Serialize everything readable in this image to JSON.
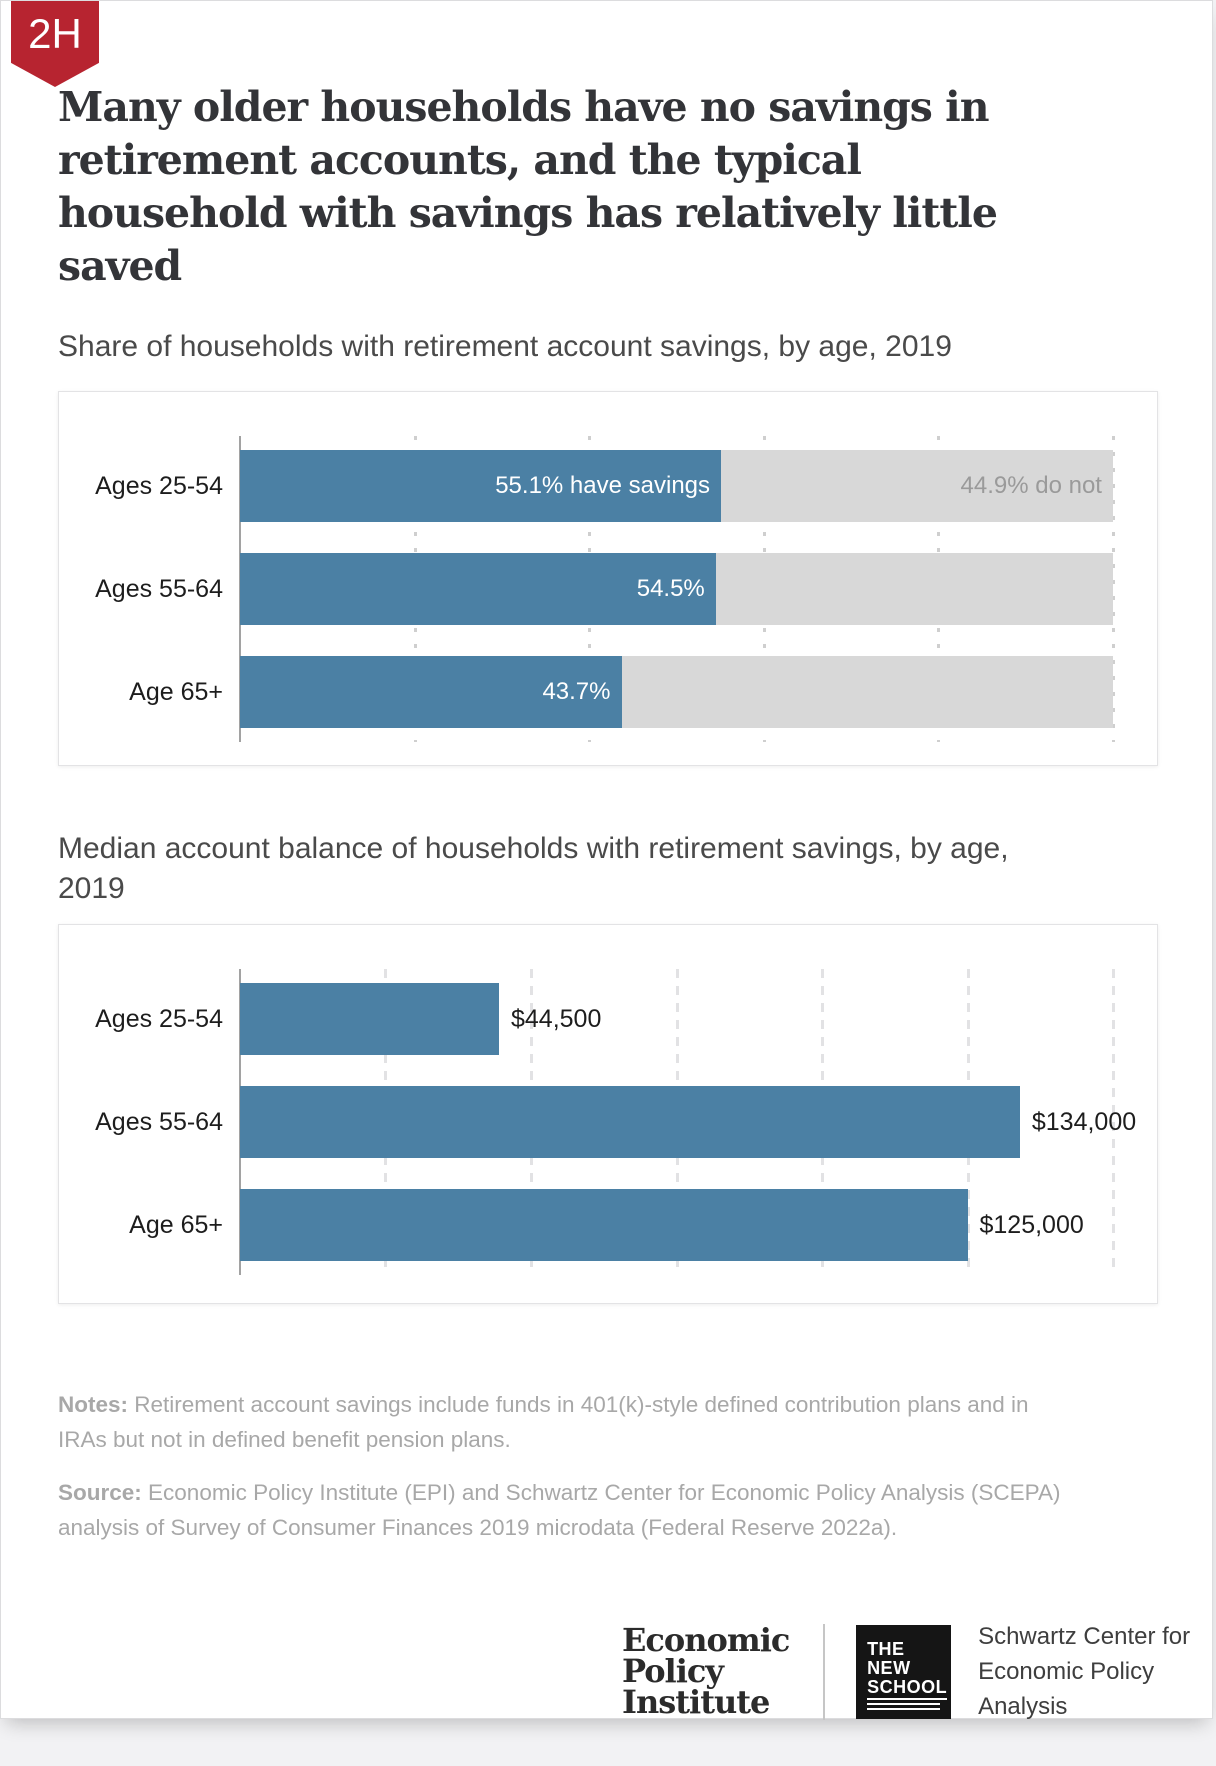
{
  "badge": "2H",
  "title_lines": [
    "Many older households have no savings in",
    "retirement accounts, and the typical",
    "household with savings has relatively little",
    "saved"
  ],
  "colors": {
    "accent_blue": "#4b80a4",
    "bar_gray": "#d8d8d8",
    "badge_red": "#b72430"
  },
  "chart_data": [
    {
      "type": "bar",
      "orientation": "horizontal",
      "stacked": true,
      "title": "Share of households with retirement account savings, by age, 2019",
      "categories": [
        "Ages 25-54",
        "Ages 55-64",
        "Age 65+"
      ],
      "series": [
        {
          "name": "have savings",
          "values": [
            55.1,
            54.5,
            43.7
          ],
          "color": "#4b80a4",
          "labels": [
            "55.1% have savings",
            "54.5%",
            "43.7%"
          ]
        },
        {
          "name": "do not",
          "values": [
            44.9,
            45.5,
            56.3
          ],
          "color": "#d8d8d8",
          "labels": [
            "44.9% do not",
            "",
            ""
          ]
        }
      ],
      "xlabel": "",
      "ylabel": "",
      "xlim": [
        0,
        100
      ],
      "gridlines": [
        20,
        40,
        60,
        80,
        100
      ],
      "grid_style": "dotted",
      "legend": "none"
    },
    {
      "type": "bar",
      "orientation": "horizontal",
      "stacked": false,
      "title_lines": [
        "Median account balance of households with retirement savings, by age,",
        "2019"
      ],
      "categories": [
        "Ages 25-54",
        "Ages 55-64",
        "Age 65+"
      ],
      "values": [
        44500,
        134000,
        125000
      ],
      "value_labels": [
        "$44,500",
        "$134,000",
        "$125,000"
      ],
      "bar_color": "#4b80a4",
      "xlabel": "",
      "ylabel": "",
      "xlim": [
        0,
        150000
      ],
      "gridlines": [
        25000,
        50000,
        75000,
        100000,
        125000,
        150000
      ],
      "grid_style": "dashed",
      "legend": "none"
    }
  ],
  "notes": {
    "label": "Notes:",
    "lines": [
      " Retirement account savings include funds in 401(k)-style defined contribution plans and in",
      "IRAs but not in defined benefit pension plans."
    ]
  },
  "source": {
    "label": "Source:",
    "lines": [
      " Economic Policy Institute (EPI) and Schwartz Center for Economic Policy Analysis (SCEPA)",
      "analysis of Survey of Consumer Finances 2019 microdata (Federal Reserve 2022a)."
    ]
  },
  "footer": {
    "epi_logo_lines": [
      "Economic",
      "Policy",
      "Institute"
    ],
    "new_school_lines": [
      "THE",
      "NEW",
      "SCHOOL"
    ],
    "schwartz_lines": [
      "Schwartz Center for",
      "Economic Policy Analysis"
    ]
  }
}
